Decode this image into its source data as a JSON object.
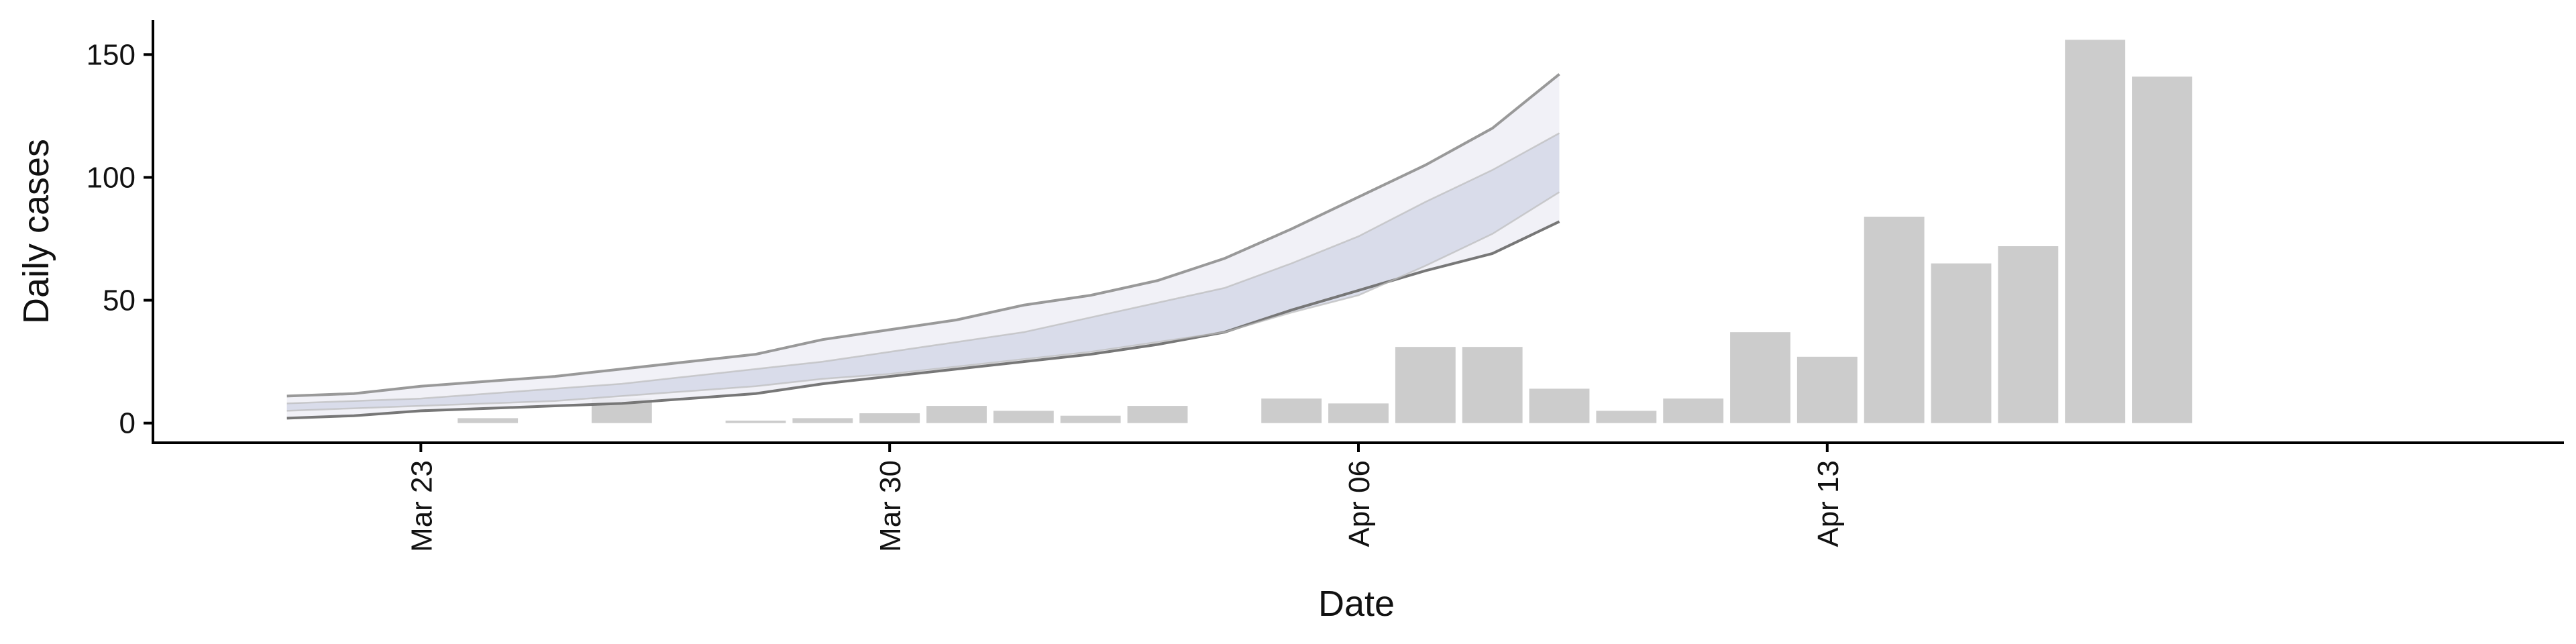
{
  "chart_data": {
    "type": "bar",
    "title": "",
    "xlabel": "Date",
    "ylabel": "Daily cases",
    "x_tick_labels": [
      {
        "date": "2020-03-23",
        "label": "Mar 23"
      },
      {
        "date": "2020-03-30",
        "label": "Mar 30"
      },
      {
        "date": "2020-04-06",
        "label": "Apr 06"
      },
      {
        "date": "2020-04-13",
        "label": "Apr 13"
      }
    ],
    "x_range": [
      "2020-03-19",
      "2020-04-24"
    ],
    "y_ticks": [
      0,
      50,
      100,
      150
    ],
    "ylim": [
      -8,
      164
    ],
    "grid": false,
    "colors": {
      "bars": "#cccccc",
      "band_outer": "#eeeff6",
      "band_inner": "#d0d4e5",
      "bound_outer_upper": "#999999",
      "bound_outer_lower": "#777777",
      "bound_inner_upper": "#bbbbbb",
      "bound_inner_lower": "#bbbbbb",
      "axis": "#000000"
    },
    "bars": [
      {
        "date": "2020-03-24",
        "value": 2
      },
      {
        "date": "2020-03-26",
        "value": 10
      },
      {
        "date": "2020-03-28",
        "value": 1
      },
      {
        "date": "2020-03-29",
        "value": 2
      },
      {
        "date": "2020-03-30",
        "value": 4
      },
      {
        "date": "2020-03-31",
        "value": 7
      },
      {
        "date": "2020-04-01",
        "value": 5
      },
      {
        "date": "2020-04-02",
        "value": 3
      },
      {
        "date": "2020-04-03",
        "value": 7
      },
      {
        "date": "2020-04-05",
        "value": 10
      },
      {
        "date": "2020-04-06",
        "value": 8
      },
      {
        "date": "2020-04-07",
        "value": 31
      },
      {
        "date": "2020-04-08",
        "value": 31
      },
      {
        "date": "2020-04-09",
        "value": 14
      },
      {
        "date": "2020-04-10",
        "value": 5
      },
      {
        "date": "2020-04-11",
        "value": 10
      },
      {
        "date": "2020-04-12",
        "value": 37
      },
      {
        "date": "2020-04-13",
        "value": 27
      },
      {
        "date": "2020-04-14",
        "value": 84
      },
      {
        "date": "2020-04-15",
        "value": 65
      },
      {
        "date": "2020-04-16",
        "value": 72
      },
      {
        "date": "2020-04-17",
        "value": 156
      },
      {
        "date": "2020-04-18",
        "value": 141
      }
    ],
    "band_dates": [
      "2020-03-21",
      "2020-03-22",
      "2020-03-23",
      "2020-03-24",
      "2020-03-25",
      "2020-03-26",
      "2020-03-27",
      "2020-03-28",
      "2020-03-29",
      "2020-03-30",
      "2020-03-31",
      "2020-04-01",
      "2020-04-02",
      "2020-04-03",
      "2020-04-04",
      "2020-04-05",
      "2020-04-06",
      "2020-04-07",
      "2020-04-08",
      "2020-04-09"
    ],
    "outer_band": {
      "upper": [
        11,
        12,
        15,
        17,
        19,
        22,
        25,
        28,
        34,
        38,
        42,
        48,
        52,
        58,
        67,
        79,
        92,
        105,
        120,
        142
      ],
      "lower": [
        2,
        3,
        5,
        6,
        7,
        8,
        10,
        12,
        16,
        19,
        22,
        25,
        28,
        32,
        37,
        46,
        54,
        62,
        69,
        82
      ]
    },
    "inner_band": {
      "upper": [
        8,
        9,
        10,
        12,
        14,
        16,
        19,
        22,
        25,
        29,
        33,
        37,
        43,
        49,
        55,
        65,
        76,
        90,
        103,
        118
      ],
      "lower": [
        5,
        6,
        7,
        8,
        9,
        11,
        13,
        15,
        18,
        20,
        23,
        26,
        29,
        33,
        37,
        45,
        52,
        64,
        77,
        94
      ]
    }
  }
}
